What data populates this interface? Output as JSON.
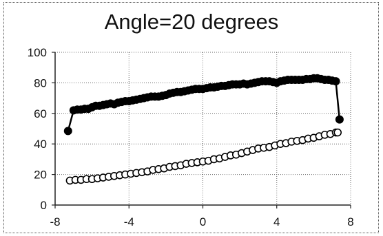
{
  "chart_data": {
    "type": "line",
    "title": "Angle=20 degrees",
    "xlabel": "",
    "ylabel": "",
    "xlim": [
      -8,
      8
    ],
    "ylim": [
      0,
      100
    ],
    "xticks": [
      -8,
      -4,
      0,
      4,
      8
    ],
    "yticks": [
      0,
      20,
      40,
      60,
      80,
      100
    ],
    "grid": true,
    "legend": "none",
    "series": [
      {
        "marker": "filled-circle",
        "color": "#000000",
        "points": [
          [
            -7.3,
            48.5
          ],
          [
            -7.0,
            62
          ],
          [
            -6.8,
            62.5
          ],
          [
            -6.6,
            62.5
          ],
          [
            -6.4,
            63
          ],
          [
            -6.2,
            63
          ],
          [
            -6.0,
            64
          ],
          [
            -5.8,
            65
          ],
          [
            -5.6,
            65
          ],
          [
            -5.4,
            65.5
          ],
          [
            -5.2,
            66
          ],
          [
            -5.0,
            66.5
          ],
          [
            -4.8,
            66
          ],
          [
            -4.6,
            67
          ],
          [
            -4.4,
            67.5
          ],
          [
            -4.2,
            68
          ],
          [
            -4.0,
            68
          ],
          [
            -3.8,
            68.5
          ],
          [
            -3.6,
            69
          ],
          [
            -3.4,
            69.5
          ],
          [
            -3.2,
            70
          ],
          [
            -3.0,
            70.5
          ],
          [
            -2.8,
            71
          ],
          [
            -2.6,
            71
          ],
          [
            -2.4,
            71
          ],
          [
            -2.2,
            71.5
          ],
          [
            -2.0,
            72
          ],
          [
            -1.8,
            73
          ],
          [
            -1.6,
            73.5
          ],
          [
            -1.4,
            74
          ],
          [
            -1.2,
            74
          ],
          [
            -1.0,
            74.5
          ],
          [
            -0.8,
            75
          ],
          [
            -0.6,
            75.5
          ],
          [
            -0.4,
            76
          ],
          [
            -0.2,
            76
          ],
          [
            0.0,
            76
          ],
          [
            0.2,
            76.5
          ],
          [
            0.4,
            77
          ],
          [
            0.6,
            77
          ],
          [
            0.8,
            77.5
          ],
          [
            1.0,
            78
          ],
          [
            1.2,
            78
          ],
          [
            1.4,
            78.5
          ],
          [
            1.6,
            79
          ],
          [
            1.8,
            79
          ],
          [
            2.0,
            79
          ],
          [
            2.2,
            79.5
          ],
          [
            2.4,
            79
          ],
          [
            2.6,
            79.5
          ],
          [
            2.8,
            80
          ],
          [
            3.0,
            80.5
          ],
          [
            3.2,
            81
          ],
          [
            3.4,
            81
          ],
          [
            3.6,
            81
          ],
          [
            3.8,
            80.5
          ],
          [
            4.0,
            80
          ],
          [
            4.2,
            81
          ],
          [
            4.4,
            81.5
          ],
          [
            4.6,
            82
          ],
          [
            4.8,
            82
          ],
          [
            5.0,
            82
          ],
          [
            5.2,
            82
          ],
          [
            5.4,
            82
          ],
          [
            5.6,
            82.5
          ],
          [
            5.8,
            82.5
          ],
          [
            6.0,
            83
          ],
          [
            6.2,
            83
          ],
          [
            6.4,
            82.5
          ],
          [
            6.6,
            82
          ],
          [
            6.8,
            82
          ],
          [
            7.0,
            81.5
          ],
          [
            7.2,
            81
          ],
          [
            7.4,
            56
          ]
        ]
      },
      {
        "marker": "open-circle",
        "color": "#000000",
        "points": [
          [
            -7.2,
            16
          ],
          [
            -6.9,
            16.5
          ],
          [
            -6.6,
            16.5
          ],
          [
            -6.3,
            17
          ],
          [
            -6.0,
            17
          ],
          [
            -5.7,
            17.5
          ],
          [
            -5.4,
            18
          ],
          [
            -5.1,
            18.5
          ],
          [
            -4.8,
            19
          ],
          [
            -4.5,
            19.5
          ],
          [
            -4.2,
            20
          ],
          [
            -3.9,
            20.5
          ],
          [
            -3.6,
            21
          ],
          [
            -3.3,
            21.5
          ],
          [
            -3.0,
            22
          ],
          [
            -2.7,
            23
          ],
          [
            -2.4,
            23.5
          ],
          [
            -2.1,
            24
          ],
          [
            -1.8,
            25
          ],
          [
            -1.5,
            25.5
          ],
          [
            -1.2,
            26
          ],
          [
            -0.9,
            27
          ],
          [
            -0.6,
            27.5
          ],
          [
            -0.3,
            28
          ],
          [
            0.0,
            28.5
          ],
          [
            0.3,
            29
          ],
          [
            0.6,
            30
          ],
          [
            0.9,
            30.5
          ],
          [
            1.2,
            31.5
          ],
          [
            1.5,
            32.5
          ],
          [
            1.8,
            33
          ],
          [
            2.1,
            34
          ],
          [
            2.4,
            35
          ],
          [
            2.7,
            36
          ],
          [
            3.0,
            37
          ],
          [
            3.3,
            37.5
          ],
          [
            3.6,
            38
          ],
          [
            3.9,
            39
          ],
          [
            4.2,
            40
          ],
          [
            4.5,
            40.5
          ],
          [
            4.8,
            41.5
          ],
          [
            5.1,
            42
          ],
          [
            5.4,
            42.5
          ],
          [
            5.7,
            43.5
          ],
          [
            6.0,
            44
          ],
          [
            6.3,
            45
          ],
          [
            6.6,
            46
          ],
          [
            6.9,
            46.5
          ],
          [
            7.2,
            47.5
          ],
          [
            7.3,
            47.5
          ]
        ]
      }
    ]
  }
}
